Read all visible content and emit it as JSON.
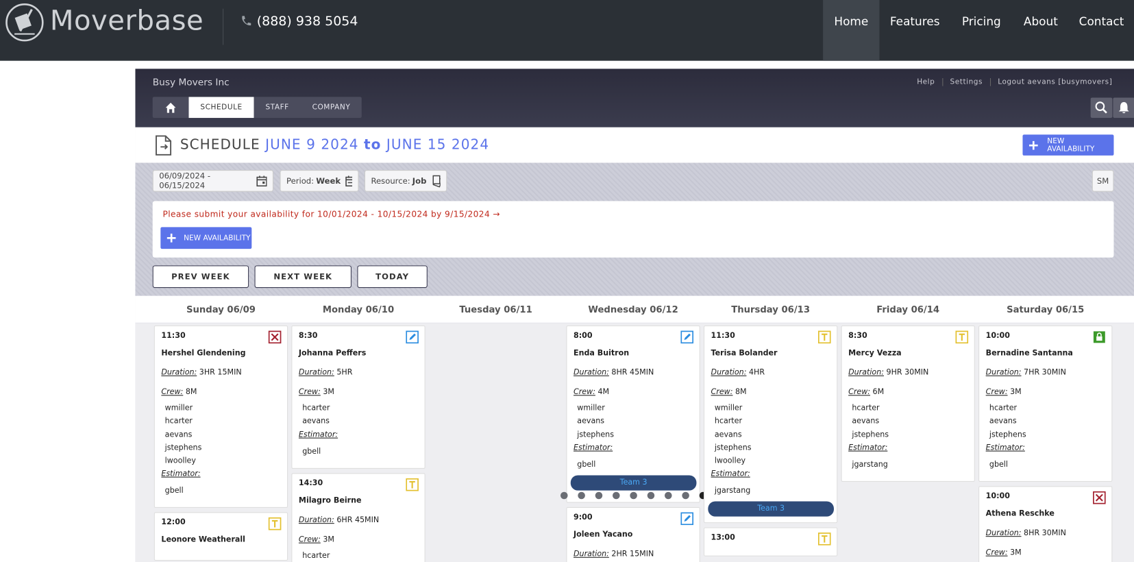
{
  "nav": {
    "logo": "Moverbase",
    "phone": "(888) 938 5054",
    "links": [
      "Home",
      "Features",
      "Pricing",
      "About",
      "Contact"
    ],
    "active": 0
  },
  "app": {
    "company": "Busy Movers Inc",
    "top_links": [
      "Help",
      "Settings",
      "Logout aevans [busymovers]"
    ],
    "tabs": [
      "SCHEDULE",
      "STAFF",
      "COMPANY"
    ],
    "active_tab": 0
  },
  "schedule": {
    "title": "SCHEDULE",
    "start": "JUNE 9 2024",
    "to": "to",
    "end": "JUNE 15 2024",
    "new_button": "NEW AVAILABILITY",
    "date_range": "06/09/2024 - 06/15/2024",
    "period_label": "Period:",
    "period": "Week",
    "resource_label": "Resource:",
    "resource": "Job",
    "size_button": "SM",
    "notice": "Please submit your availability for 10/01/2024 - 10/15/2024 by 9/15/2024 →",
    "notice_button": "NEW AVAILABILITY",
    "nav_buttons": [
      "PREV WEEK",
      "NEXT WEEK",
      "TODAY"
    ]
  },
  "labels": {
    "duration": "Duration:",
    "crew": "Crew:",
    "estimator": "Estimator:"
  },
  "days": [
    {
      "label": "Sunday 06/09",
      "jobs": [
        {
          "time": "11:30",
          "customer": "Hershel Glendening",
          "duration": "3HR 15MIN",
          "crew": "8M",
          "crew_members": [
            "wmiller",
            "hcarter",
            "aevans",
            "jstephens",
            "lwoolley"
          ],
          "estimator": "gbell",
          "status": "cancelled"
        },
        {
          "time": "12:00",
          "customer": "Leonore Weatherall",
          "status": "tentative"
        }
      ]
    },
    {
      "label": "Monday 06/10",
      "jobs": [
        {
          "time": "8:30",
          "customer": "Johanna Peffers",
          "duration": "5HR",
          "crew": "3M",
          "crew_members": [
            "hcarter",
            "aevans"
          ],
          "estimator": "gbell",
          "status": "edit"
        },
        {
          "time": "14:30",
          "customer": "Milagro Beirne",
          "duration": "6HR 45MIN",
          "crew": "3M",
          "crew_members": [
            "hcarter"
          ],
          "status": "tentative"
        }
      ]
    },
    {
      "label": "Tuesday 06/11",
      "jobs": []
    },
    {
      "label": "Wednesday 06/12",
      "jobs": [
        {
          "time": "8:00",
          "customer": "Enda Buitron",
          "duration": "8HR 45MIN",
          "crew": "4M",
          "crew_members": [
            "wmiller",
            "aevans",
            "jstephens"
          ],
          "estimator": "gbell",
          "status": "edit",
          "team": "Team 3"
        },
        {
          "time": "9:00",
          "customer": "Joleen Yacano",
          "duration": "2HR 15MIN",
          "status": "edit"
        }
      ]
    },
    {
      "label": "Thursday 06/13",
      "jobs": [
        {
          "time": "11:30",
          "customer": "Terisa Bolander",
          "duration": "4HR",
          "crew": "8M",
          "crew_members": [
            "wmiller",
            "hcarter",
            "aevans",
            "jstephens",
            "lwoolley"
          ],
          "estimator": "jgarstang",
          "status": "tentative",
          "team": "Team 3"
        },
        {
          "time": "13:00",
          "status": "tentative"
        }
      ]
    },
    {
      "label": "Friday 06/14",
      "jobs": [
        {
          "time": "8:30",
          "customer": "Mercy Vezza",
          "duration": "9HR 30MIN",
          "crew": "6M",
          "crew_members": [
            "hcarter",
            "aevans",
            "jstephens"
          ],
          "estimator": "jgarstang",
          "status": "tentative"
        }
      ]
    },
    {
      "label": "Saturday 06/15",
      "jobs": [
        {
          "time": "10:00",
          "customer": "Bernadine Santanna",
          "duration": "7HR 30MIN",
          "crew": "3M",
          "crew_members": [
            "hcarter",
            "aevans",
            "jstephens"
          ],
          "estimator": "gbell",
          "status": "locked"
        },
        {
          "time": "10:00",
          "customer": "Athena Reschke",
          "duration": "8HR 30MIN",
          "crew": "3M",
          "status": "cancelled"
        }
      ]
    }
  ]
}
